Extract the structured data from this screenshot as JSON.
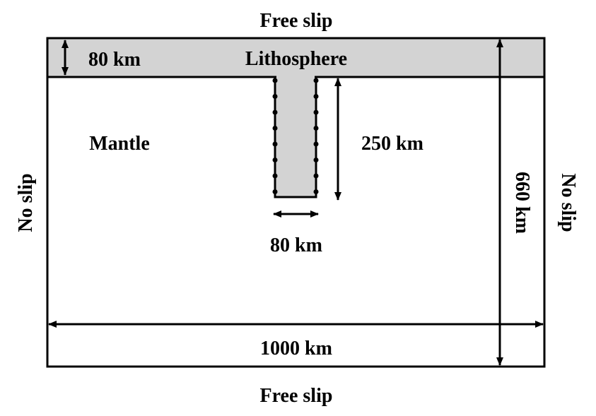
{
  "boundaries": {
    "top": "Free slip",
    "bottom": "Free slip",
    "left": "No slip",
    "right": "No slip"
  },
  "regions": {
    "lithosphere": "Lithosphere",
    "mantle": "Mantle"
  },
  "dimensions": {
    "lithosphere_thickness": "80 km",
    "slab_length": "250 km",
    "slab_width": "80 km",
    "box_width": "1000 km",
    "box_depth": "660 km"
  },
  "colors": {
    "lithosphere_fill": "#d3d3d3",
    "stroke": "#000000",
    "background": "#ffffff"
  }
}
